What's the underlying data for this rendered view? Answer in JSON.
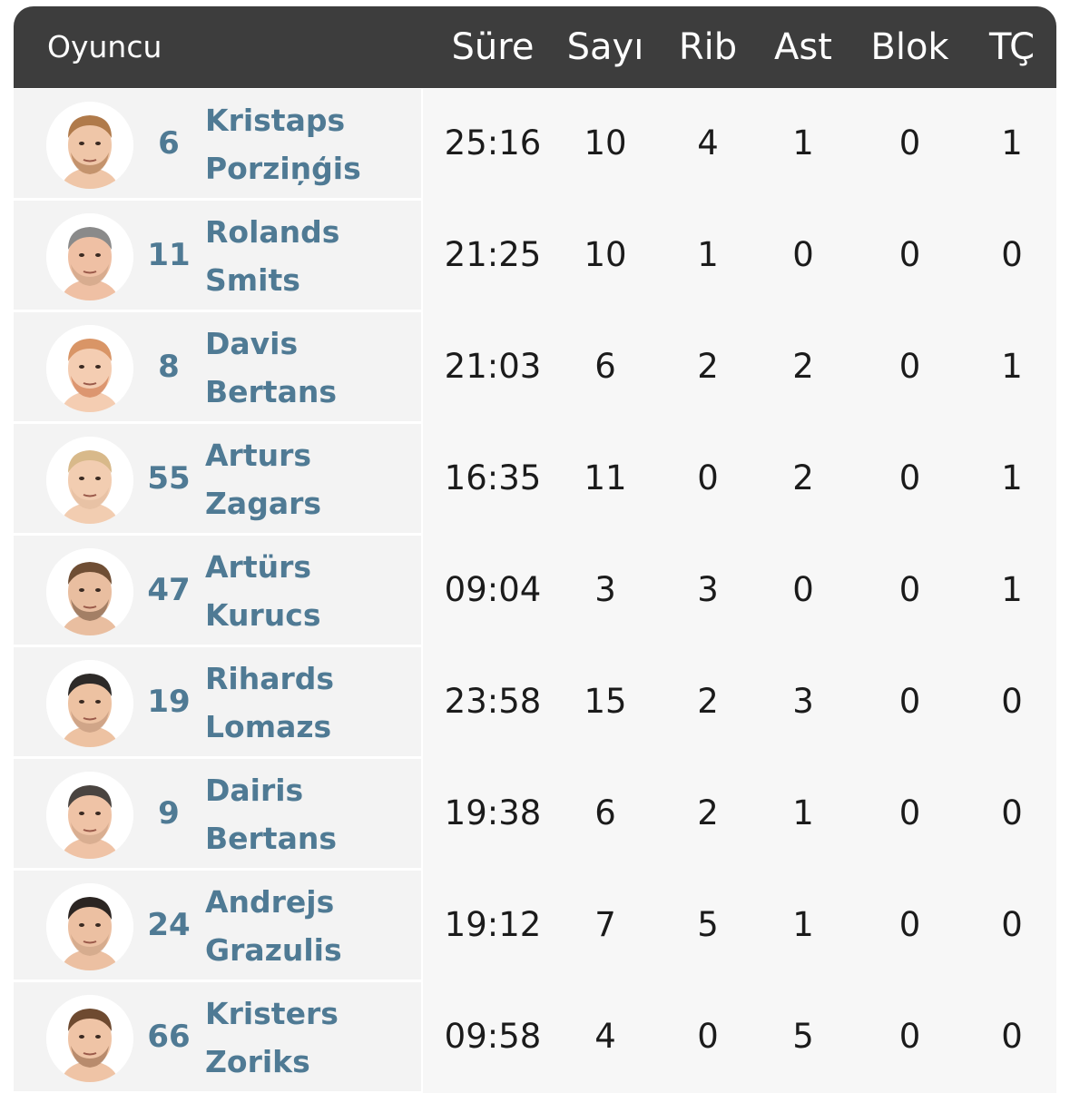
{
  "header": {
    "player": "Oyuncu",
    "sure": "Süre",
    "sayi": "Sayı",
    "rib": "Rib",
    "ast": "Ast",
    "blok": "Blok",
    "tc": "TÇ"
  },
  "colors": {
    "header_bg": "#3d3d3d",
    "name_color": "#4f7a94",
    "row_bg": "#f3f3f3"
  },
  "players": [
    {
      "number": "6",
      "first": "Kristaps",
      "last": "Porziņģis",
      "sure": "25:16",
      "sayi": "10",
      "rib": "4",
      "ast": "1",
      "blok": "0",
      "tc": "1",
      "hair": "#b07a4a",
      "skin": "#efc6a8",
      "beard": "#a06a3c"
    },
    {
      "number": "11",
      "first": "Rolands",
      "last": "Smits",
      "sure": "21:25",
      "sayi": "10",
      "rib": "1",
      "ast": "0",
      "blok": "0",
      "tc": "0",
      "hair": "#8a8a8a",
      "skin": "#efc0a4",
      "beard": "#c49a7e"
    },
    {
      "number": "8",
      "first": "Davis",
      "last": "Bertans",
      "sure": "21:03",
      "sayi": "6",
      "rib": "2",
      "ast": "2",
      "blok": "0",
      "tc": "1",
      "hair": "#d99566",
      "skin": "#f4cdb2",
      "beard": "#c8693a"
    },
    {
      "number": "55",
      "first": "Arturs",
      "last": "Zagars",
      "sure": "16:35",
      "sayi": "11",
      "rib": "0",
      "ast": "2",
      "blok": "0",
      "tc": "1",
      "hair": "#d8b98a",
      "skin": "#f2cdb1",
      "beard": "#e0b99a"
    },
    {
      "number": "47",
      "first": "Artürs",
      "last": "Kurucs",
      "sure": "09:04",
      "sayi": "3",
      "rib": "3",
      "ast": "0",
      "blok": "0",
      "tc": "1",
      "hair": "#6f4e34",
      "skin": "#e9bea0",
      "beard": "#6a4b34"
    },
    {
      "number": "19",
      "first": "Rihards",
      "last": "Lomazs",
      "sure": "23:58",
      "sayi": "15",
      "rib": "2",
      "ast": "3",
      "blok": "0",
      "tc": "0",
      "hair": "#2d2a28",
      "skin": "#edc2a2",
      "beard": "#b88e72"
    },
    {
      "number": "9",
      "first": "Dairis",
      "last": "Bertans",
      "sure": "19:38",
      "sayi": "6",
      "rib": "2",
      "ast": "1",
      "blok": "0",
      "tc": "0",
      "hair": "#4a4440",
      "skin": "#efc3a6",
      "beard": "#c79c80"
    },
    {
      "number": "24",
      "first": "Andrejs",
      "last": "Grazulis",
      "sure": "19:12",
      "sayi": "7",
      "rib": "5",
      "ast": "1",
      "blok": "0",
      "tc": "0",
      "hair": "#2b2522",
      "skin": "#ecc0a2",
      "beard": "#c59a7e"
    },
    {
      "number": "66",
      "first": "Kristers",
      "last": "Zoriks",
      "sure": "09:58",
      "sayi": "4",
      "rib": "0",
      "ast": "5",
      "blok": "0",
      "tc": "0",
      "hair": "#6e4a30",
      "skin": "#efc4a6",
      "beard": "#8a5d3e"
    }
  ]
}
